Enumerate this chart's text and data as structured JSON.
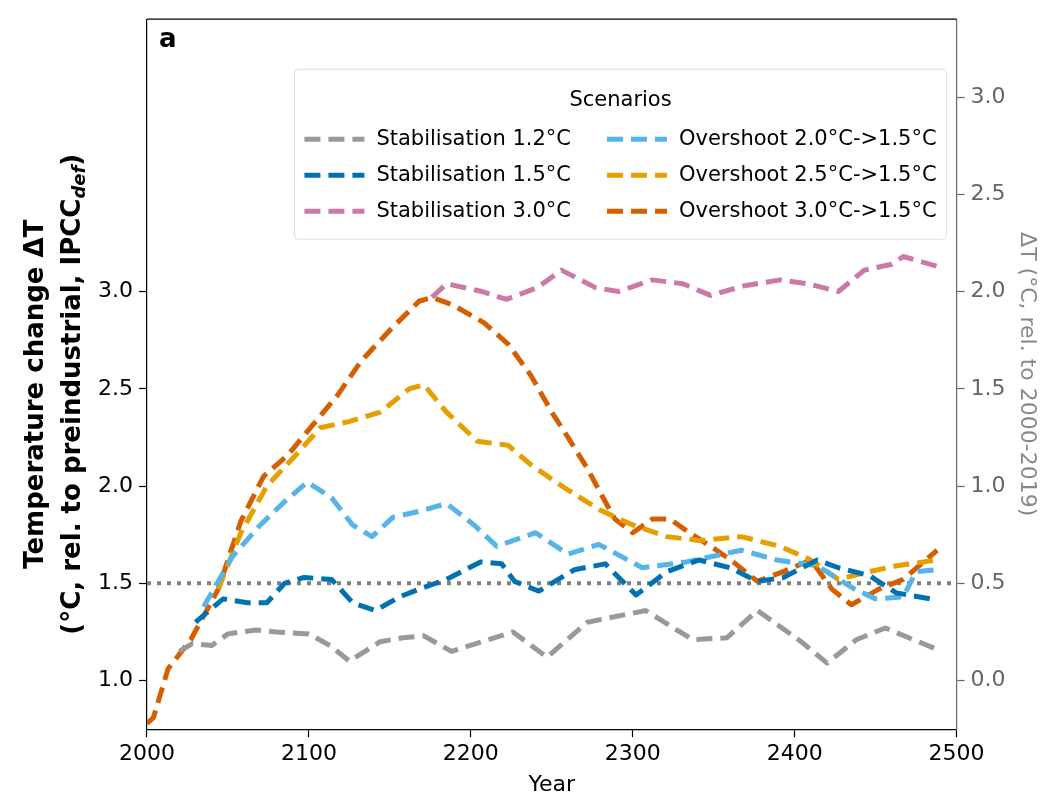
{
  "chart_data": {
    "type": "line",
    "xlabel": "Year",
    "ylabel": "Temperature change ΔT\n(°C, rel. to preindustrial, IPCC$_{def}$)",
    "y2label": "ΔT (°C, rel. to 2000-2019)",
    "legend_title": "Scenarios",
    "legend": "top right",
    "line_style": "dashed",
    "annotations": [
      "a"
    ],
    "xlim": [
      2000,
      2500
    ],
    "xticks": [
      2000,
      2100,
      2200,
      2300,
      2400,
      2500
    ],
    "ylim": [
      0.75,
      4.4
    ],
    "yticks": [
      {
        "value": 1,
        "label": "1.0"
      },
      1.5,
      {
        "value": 2,
        "label": "2.0"
      },
      2.5,
      {
        "value": 3,
        "label": "3.0"
      }
    ],
    "y2lim": [
      -0.25,
      3.4
    ],
    "y2ticks": [
      {
        "value": 0,
        "label": "0.0"
      },
      0.5,
      {
        "value": 1,
        "label": "1.0"
      },
      1.5,
      {
        "value": 2,
        "label": "2.0"
      },
      2.5,
      {
        "value": 3,
        "label": "3.0"
      }
    ],
    "ref_lines": [
      {
        "axis": "y",
        "value": 1.5,
        "color": "#808080",
        "line_style": "dotted"
      }
    ],
    "series": [
      {
        "name": "Stabilisation 1.2°C",
        "color": "#999999",
        "x": [
          2020,
          2028,
          2040,
          2050,
          2067,
          2080,
          2100,
          2113,
          2125,
          2144,
          2158,
          2171,
          2188,
          2207,
          2226,
          2247,
          2272,
          2308,
          2337,
          2358,
          2377,
          2404,
          2420,
          2438,
          2456,
          2488
        ],
        "values": [
          1.15,
          1.19,
          1.18,
          1.24,
          1.26,
          1.25,
          1.24,
          1.18,
          1.1,
          1.2,
          1.22,
          1.23,
          1.15,
          1.2,
          1.25,
          1.12,
          1.3,
          1.36,
          1.21,
          1.22,
          1.36,
          1.2,
          1.09,
          1.21,
          1.27,
          1.16
        ]
      },
      {
        "name": "Stabilisation 1.5°C",
        "color": "#0072b2",
        "x": [
          2030,
          2047,
          2062,
          2074,
          2085,
          2097,
          2114,
          2127,
          2141,
          2156,
          2168,
          2185,
          2206,
          2219,
          2227,
          2242,
          2264,
          2283,
          2302,
          2321,
          2341,
          2360,
          2377,
          2393,
          2414,
          2427,
          2446,
          2463,
          2484
        ],
        "values": [
          1.3,
          1.42,
          1.4,
          1.4,
          1.5,
          1.53,
          1.52,
          1.4,
          1.36,
          1.43,
          1.47,
          1.52,
          1.61,
          1.6,
          1.51,
          1.46,
          1.57,
          1.6,
          1.44,
          1.56,
          1.62,
          1.58,
          1.51,
          1.53,
          1.62,
          1.58,
          1.54,
          1.45,
          1.42
        ]
      },
      {
        "name": "Stabilisation 3.0°C",
        "color": "#cc79a7",
        "x": [
          2176,
          2185,
          2207,
          2222,
          2241,
          2256,
          2277,
          2291,
          2312,
          2331,
          2348,
          2369,
          2391,
          2408,
          2427,
          2443,
          2460,
          2467,
          2488
        ],
        "values": [
          2.97,
          3.04,
          3.0,
          2.96,
          3.02,
          3.11,
          3.02,
          3.0,
          3.06,
          3.04,
          2.98,
          3.03,
          3.06,
          3.04,
          3.0,
          3.11,
          3.14,
          3.18,
          3.13
        ]
      },
      {
        "name": "Overshoot 2.0°C->1.5°C",
        "color": "#56b4e9",
        "x": [
          2035,
          2053,
          2070,
          2085,
          2099,
          2114,
          2127,
          2139,
          2152,
          2168,
          2185,
          2202,
          2216,
          2240,
          2260,
          2279,
          2306,
          2333,
          2367,
          2389,
          2414,
          2437,
          2450,
          2467,
          2475,
          2488
        ],
        "values": [
          1.38,
          1.64,
          1.8,
          1.92,
          2.02,
          1.94,
          1.8,
          1.74,
          1.84,
          1.87,
          1.91,
          1.8,
          1.69,
          1.76,
          1.65,
          1.7,
          1.58,
          1.61,
          1.67,
          1.62,
          1.59,
          1.47,
          1.42,
          1.43,
          1.56,
          1.57
        ]
      },
      {
        "name": "Overshoot 2.5°C->1.5°C",
        "color": "#e69f00",
        "x": [
          2044,
          2058,
          2074,
          2092,
          2107,
          2124,
          2144,
          2162,
          2171,
          2185,
          2204,
          2223,
          2237,
          2258,
          2279,
          2300,
          2321,
          2341,
          2367,
          2391,
          2410,
          2427,
          2446,
          2463,
          2488
        ],
        "values": [
          1.47,
          1.76,
          2.0,
          2.16,
          2.3,
          2.33,
          2.38,
          2.5,
          2.52,
          2.38,
          2.23,
          2.21,
          2.11,
          1.99,
          1.88,
          1.8,
          1.74,
          1.72,
          1.74,
          1.69,
          1.62,
          1.52,
          1.56,
          1.59,
          1.62
        ]
      },
      {
        "name": "Overshoot 3.0°C->1.5°C",
        "color": "#d55e00",
        "x": [
          2000,
          2004,
          2013,
          2027,
          2044,
          2058,
          2072,
          2087,
          2101,
          2118,
          2132,
          2151,
          2168,
          2176,
          2189,
          2208,
          2223,
          2237,
          2250,
          2260,
          2272,
          2281,
          2289,
          2300,
          2312,
          2323,
          2335,
          2350,
          2362,
          2377,
          2393,
          2410,
          2423,
          2435,
          2452,
          2467,
          2488
        ],
        "values": [
          0.78,
          0.81,
          1.06,
          1.21,
          1.47,
          1.82,
          2.05,
          2.16,
          2.3,
          2.47,
          2.64,
          2.81,
          2.95,
          2.97,
          2.93,
          2.84,
          2.73,
          2.57,
          2.38,
          2.25,
          2.09,
          1.95,
          1.83,
          1.76,
          1.83,
          1.83,
          1.76,
          1.68,
          1.61,
          1.51,
          1.56,
          1.62,
          1.47,
          1.39,
          1.47,
          1.52,
          1.67
        ]
      }
    ]
  }
}
